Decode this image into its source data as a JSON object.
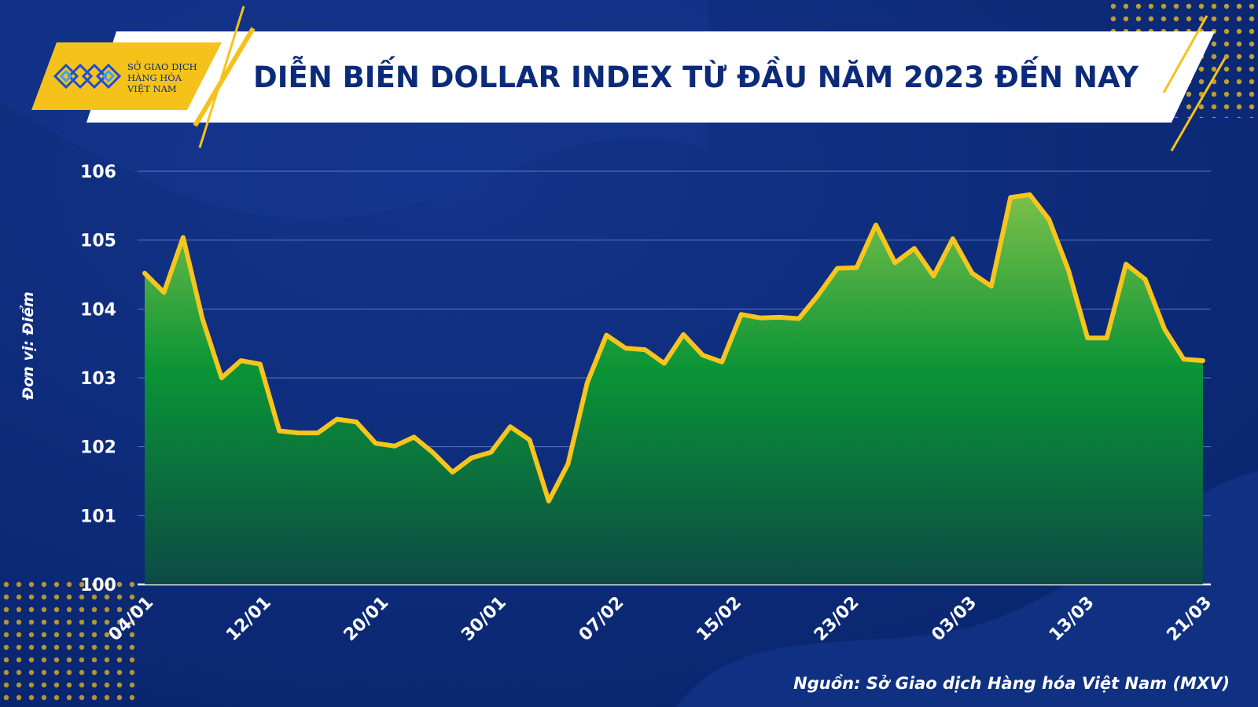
{
  "header": {
    "title": "DIỄN BIẾN DOLLAR INDEX TỪ ĐẦU NĂM 2023 ĐẾN NAY",
    "logo_lines": [
      "SỞ GIAO DỊCH",
      "HÀNG HÓA",
      "VIỆT NAM"
    ]
  },
  "source": "Nguồn: Sở Giao dịch Hàng hóa Việt Nam (MXV)",
  "colors": {
    "background": "#0c2a78",
    "accent_yellow": "#f5c21b",
    "line": "#f7c51d",
    "area_top": "#7cc04a",
    "area_mid": "#0a9436",
    "area_bottom": "#0c4a45"
  },
  "chart_data": {
    "type": "area",
    "title": "DIỄN BIẾN DOLLAR INDEX TỪ ĐẦU NĂM 2023 ĐẾN NAY",
    "xlabel": "",
    "ylabel": "Đơn vị: Điểm",
    "ylim": [
      100,
      106
    ],
    "yticks": [
      100,
      101,
      102,
      103,
      104,
      105,
      106
    ],
    "xtick_labels": [
      "04/01",
      "12/01",
      "20/01",
      "30/01",
      "07/02",
      "15/02",
      "23/02",
      "03/03",
      "13/03",
      "21/03"
    ],
    "grid": true,
    "series": [
      {
        "name": "",
        "values": [
          104.52,
          104.24,
          105.04,
          103.86,
          103.0,
          103.25,
          103.2,
          102.23,
          102.2,
          102.2,
          102.4,
          102.36,
          102.05,
          102.01,
          102.14,
          101.91,
          101.63,
          101.84,
          101.92,
          102.29,
          102.1,
          101.21,
          101.75,
          102.93,
          103.62,
          103.43,
          103.41,
          103.21,
          103.63,
          103.33,
          103.23,
          103.92,
          103.87,
          103.88,
          103.86,
          104.2,
          104.59,
          104.6,
          105.22,
          104.67,
          104.88,
          104.48,
          105.02,
          104.52,
          104.33,
          105.62,
          105.66,
          105.3,
          104.57,
          103.58,
          103.58,
          104.65,
          104.43,
          103.71,
          103.27,
          103.25
        ]
      }
    ]
  }
}
